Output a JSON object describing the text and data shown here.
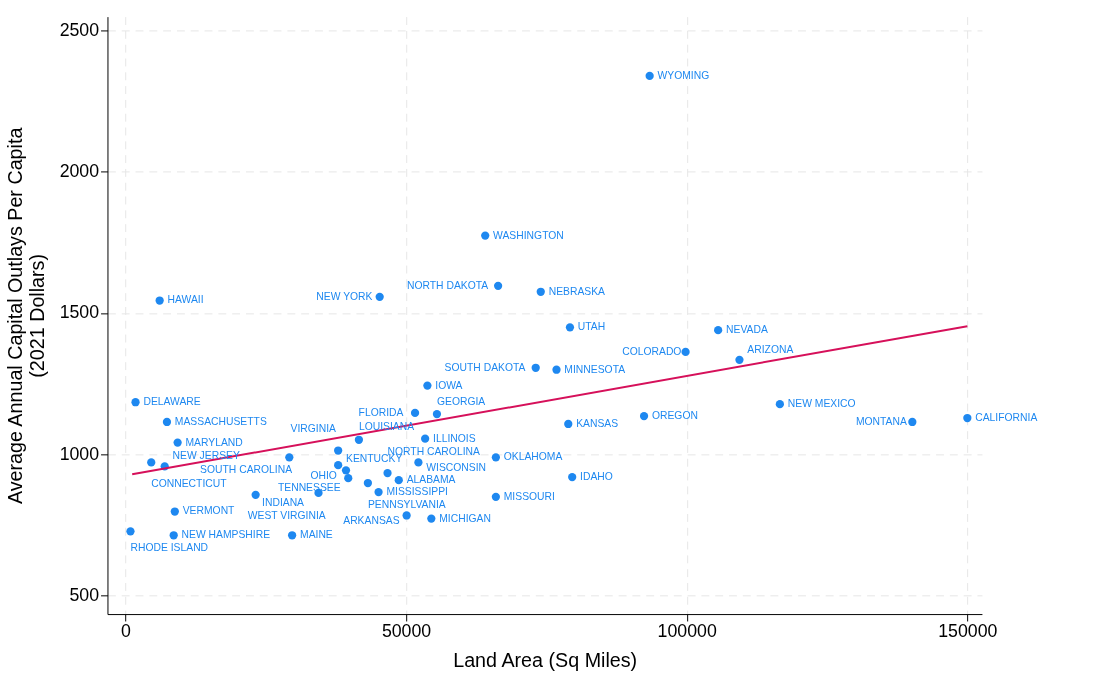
{
  "chart_data": {
    "type": "scatter",
    "xlabel": "Land Area (Sq Miles)",
    "ylabel": "Average Annual Capital Outlays Per Capita\n(2021 Dollars)",
    "xlim": [
      -3200,
      152600
    ],
    "ylim": [
      434,
      2549
    ],
    "xticks": [
      0,
      50000,
      100000,
      150000
    ],
    "yticks": [
      500,
      1000,
      1500,
      2000,
      2500
    ],
    "grid": true,
    "series": [
      {
        "color": "#1e88f0",
        "marker": "circle",
        "x": [
          93400,
          64100,
          66400,
          74000,
          6100,
          45300,
          79200,
          105600,
          99800,
          109400,
          73100,
          76800,
          53800,
          1800,
          51600,
          55500,
          116600,
          92400,
          150000,
          7400,
          78900,
          140200,
          9300,
          41600,
          53400,
          4600,
          7000,
          29200,
          37900,
          52200,
          66000,
          37900,
          39300,
          46700,
          39700,
          43200,
          48700,
          79600,
          23200,
          34400,
          45100,
          66000,
          8800,
          50100,
          54500,
          900,
          8600,
          29700
        ],
        "values": [
          2339,
          1774,
          1596,
          1575,
          1544,
          1557,
          1449,
          1439,
          1362,
          1334,
          1306,
          1299,
          1243,
          1184,
          1146,
          1142,
          1177,
          1135,
          1128,
          1114,
          1107,
          1114,
          1041,
          1051,
          1055,
          971,
          957,
          989,
          1013,
          971,
          989,
          961,
          943,
          933,
          915,
          898,
          908,
          919,
          856,
          863,
          866,
          849,
          797,
          783,
          772,
          727,
          713,
          713
        ]
      },
      {
        "type": "line",
        "marker": "none",
        "line_style": "solid",
        "color": "#d6105a",
        "x": [
          1200,
          150000
        ],
        "values": [
          929,
          1453
        ]
      }
    ],
    "annotations": [
      {
        "text": "WYOMING",
        "x": 93400,
        "y": 2339
      },
      {
        "text": "WASHINGTON",
        "x": 64100,
        "y": 1774
      },
      {
        "text": "NORTH DAKOTA",
        "x": 66400,
        "y": 1596
      },
      {
        "text": "NEBRASKA",
        "x": 74000,
        "y": 1575
      },
      {
        "text": "HAWAII",
        "x": 6100,
        "y": 1544
      },
      {
        "text": "NEW YORK",
        "x": 45300,
        "y": 1557
      },
      {
        "text": "UTAH",
        "x": 79200,
        "y": 1449
      },
      {
        "text": "NEVADA",
        "x": 105600,
        "y": 1439
      },
      {
        "text": "COLORADO",
        "x": 99800,
        "y": 1362
      },
      {
        "text": "ARIZONA",
        "x": 109400,
        "y": 1334
      },
      {
        "text": "SOUTH DAKOTA",
        "x": 73100,
        "y": 1306
      },
      {
        "text": "MINNESOTA",
        "x": 76800,
        "y": 1299
      },
      {
        "text": "IOWA",
        "x": 53800,
        "y": 1243
      },
      {
        "text": "DELAWARE",
        "x": 1800,
        "y": 1184
      },
      {
        "text": "FLORIDA",
        "x": 51600,
        "y": 1146
      },
      {
        "text": "GEORGIA",
        "x": 55500,
        "y": 1142
      },
      {
        "text": "NEW MEXICO",
        "x": 116600,
        "y": 1177
      },
      {
        "text": "OREGON",
        "x": 92400,
        "y": 1135
      },
      {
        "text": "CALIFORNIA",
        "x": 150000,
        "y": 1128
      },
      {
        "text": "MASSACHUSETTS",
        "x": 7400,
        "y": 1114
      },
      {
        "text": "KANSAS",
        "x": 78900,
        "y": 1107
      },
      {
        "text": "MONTANA",
        "x": 140200,
        "y": 1114
      },
      {
        "text": "MARYLAND",
        "x": 9300,
        "y": 1041
      },
      {
        "text": "LOUISIANA",
        "x": 41600,
        "y": 1051
      },
      {
        "text": "ILLINOIS",
        "x": 53400,
        "y": 1055
      },
      {
        "text": "CONNECTICUT",
        "x": 4600,
        "y": 971
      },
      {
        "text": "NEW JERSEY",
        "x": 7000,
        "y": 957
      },
      {
        "text": "SOUTH CAROLINA",
        "x": 29200,
        "y": 989
      },
      {
        "text": "VIRGINIA",
        "x": 37900,
        "y": 1013
      },
      {
        "text": "WISCONSIN",
        "x": 52200,
        "y": 971
      },
      {
        "text": "OKLAHOMA",
        "x": 66000,
        "y": 989
      },
      {
        "text": "KENTUCKY",
        "x": 37900,
        "y": 961
      },
      {
        "text": "OHIO",
        "x": 39300,
        "y": 943
      },
      {
        "text": "NORTH CAROLINA",
        "x": 46700,
        "y": 933
      },
      {
        "text": "TENNESSEE",
        "x": 39700,
        "y": 915
      },
      {
        "text": "PENNSYLVANIA",
        "x": 43200,
        "y": 898
      },
      {
        "text": "ALABAMA",
        "x": 48700,
        "y": 908
      },
      {
        "text": "IDAHO",
        "x": 79600,
        "y": 919
      },
      {
        "text": "WEST VIRGINIA",
        "x": 23200,
        "y": 856
      },
      {
        "text": "INDIANA",
        "x": 34400,
        "y": 863
      },
      {
        "text": "MISSISSIPPI",
        "x": 45100,
        "y": 866
      },
      {
        "text": "MISSOURI",
        "x": 66000,
        "y": 849
      },
      {
        "text": "VERMONT",
        "x": 8800,
        "y": 797
      },
      {
        "text": "ARKANSAS",
        "x": 50100,
        "y": 783
      },
      {
        "text": "MICHIGAN",
        "x": 54500,
        "y": 772
      },
      {
        "text": "RHODE ISLAND",
        "x": 900,
        "y": 727
      },
      {
        "text": "NEW HAMPSHIRE",
        "x": 8600,
        "y": 713
      },
      {
        "text": "MAINE",
        "x": 29700,
        "y": 713
      }
    ]
  }
}
